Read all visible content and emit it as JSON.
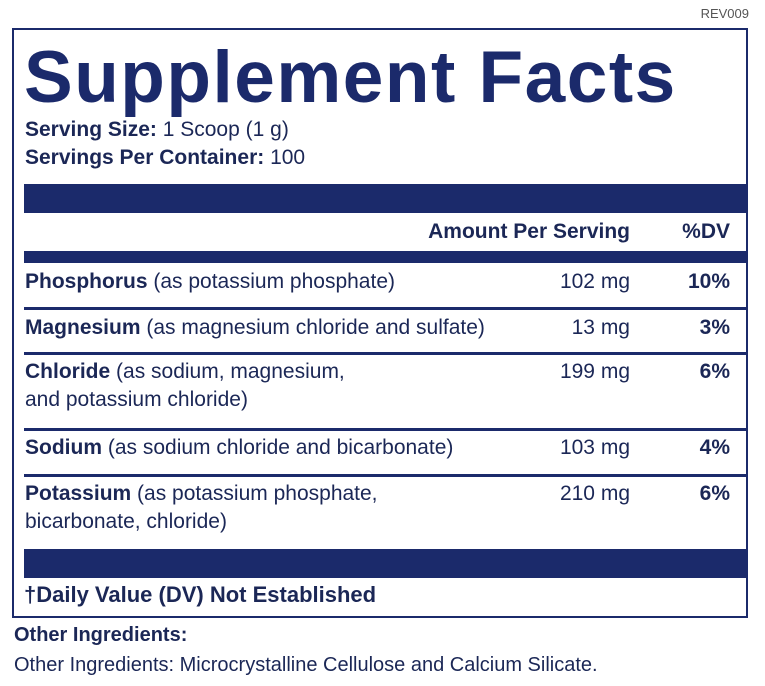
{
  "revision": "REV009",
  "title": "Supplement Facts",
  "serving_size": {
    "label": "Serving Size:",
    "value": "1 Scoop (1 g)"
  },
  "servings_per_container": {
    "label": "Servings Per Container:",
    "value": "100"
  },
  "table": {
    "headers": [
      "Amount Per Serving",
      "%DV"
    ],
    "rows": [
      {
        "name": "Phosphorus",
        "description": [
          "(as potassium phosphate)"
        ],
        "amount": "102 mg",
        "dv": "10%"
      },
      {
        "name": "Magnesium",
        "description": [
          "(as magnesium chloride and sulfate)"
        ],
        "amount": "13 mg",
        "dv": "3%"
      },
      {
        "name": "Chloride",
        "description": [
          "(as sodium, magnesium,",
          "and potassium chloride)"
        ],
        "amount": "199 mg",
        "dv": "6%"
      },
      {
        "name": "Sodium",
        "description": [
          "(as sodium chloride and bicarbonate)"
        ],
        "amount": "103 mg",
        "dv": "4%"
      },
      {
        "name": "Potassium",
        "description": [
          "(as potassium phosphate,",
          "bicarbonate, chloride)"
        ],
        "amount": "210 mg",
        "dv": "6%"
      }
    ]
  },
  "footnote": "†Daily Value (DV) Not Established",
  "other_ingredients": {
    "heading": "Other Ingredients:",
    "text": "Other Ingredients: Microcrystalline Cellulose and Calcium Silicate."
  }
}
